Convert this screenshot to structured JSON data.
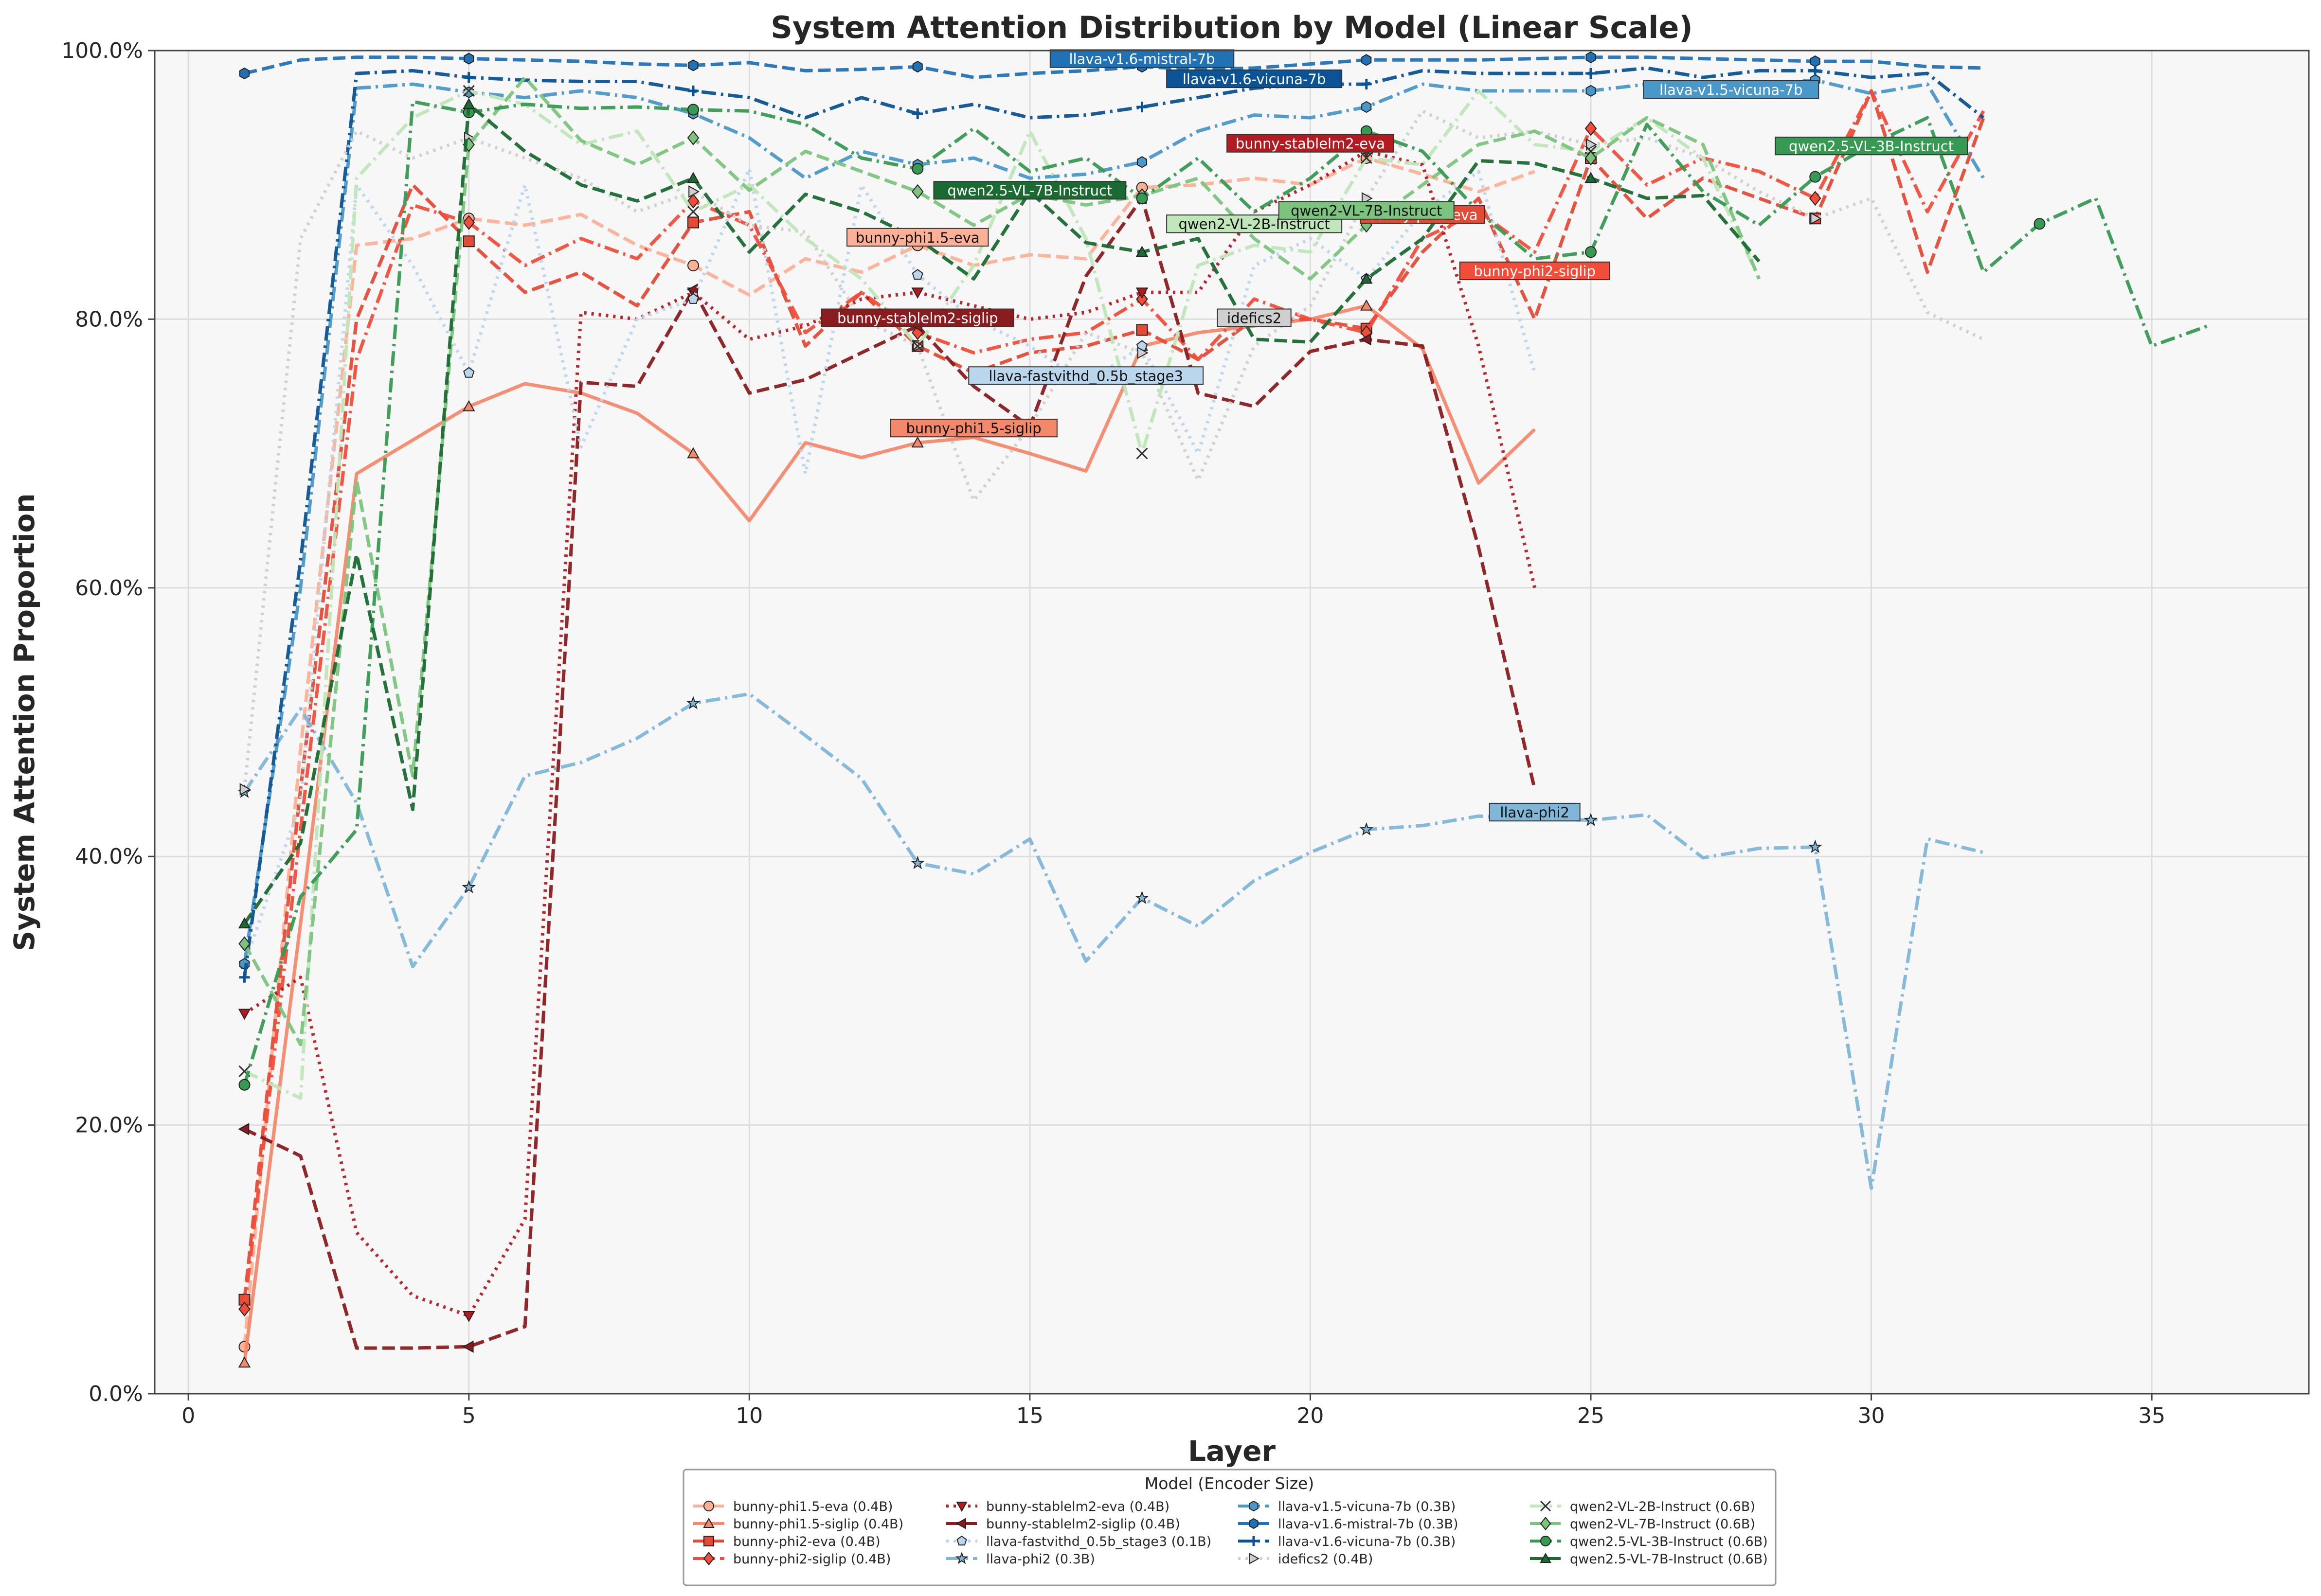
{
  "chart_data": {
    "type": "line",
    "title": "System Attention Distribution by Model (Linear Scale)",
    "xlabel": "Layer",
    "ylabel": "System Attention Proportion",
    "xlim": [
      -0.6,
      37.8
    ],
    "ylim": [
      0,
      1
    ],
    "xticks": [
      0,
      5,
      10,
      15,
      20,
      25,
      30,
      35
    ],
    "yticks": [
      0,
      0.2,
      0.4,
      0.6,
      0.8,
      1.0
    ],
    "ytick_labels": [
      "0.0%",
      "20.0%",
      "40.0%",
      "60.0%",
      "80.0%",
      "100.0%"
    ],
    "grid": true,
    "legend": {
      "title": "Model (Encoder Size)",
      "placement": "bottom-center",
      "columns": 4
    },
    "series": [
      {
        "name": "bunny-phi1.5-eva (0.4B)",
        "annotation": "bunny-phi1.5-eva",
        "color": "#fcb095",
        "dash": "dashed",
        "marker": "circle",
        "x": [
          1,
          2,
          3,
          4,
          5,
          6,
          7,
          8,
          9,
          10,
          11,
          12,
          13,
          14,
          15,
          16,
          17,
          18,
          19,
          20,
          21,
          22,
          23,
          24
        ],
        "y": [
          0.035,
          0.48,
          0.855,
          0.86,
          0.875,
          0.87,
          0.878,
          0.855,
          0.84,
          0.818,
          0.845,
          0.835,
          0.855,
          0.84,
          0.848,
          0.845,
          0.898,
          0.9,
          0.905,
          0.9,
          0.92,
          0.908,
          0.895,
          0.91
        ],
        "ann_x": 13,
        "ann_y": 0.86
      },
      {
        "name": "bunny-phi1.5-siglip (0.4B)",
        "annotation": "bunny-phi1.5-siglip",
        "color": "#f4886a",
        "dash": "solid",
        "marker": "triangle-up",
        "x": [
          1,
          2,
          3,
          4,
          5,
          6,
          7,
          8,
          9,
          10,
          11,
          12,
          13,
          14,
          15,
          16,
          17,
          18,
          19,
          20,
          21,
          22,
          23,
          24
        ],
        "y": [
          0.023,
          0.35,
          0.685,
          0.71,
          0.735,
          0.752,
          0.745,
          0.73,
          0.7,
          0.65,
          0.708,
          0.697,
          0.708,
          0.712,
          0.7,
          0.687,
          0.78,
          0.79,
          0.795,
          0.8,
          0.81,
          0.778,
          0.678,
          0.718
        ],
        "ann_x": 14,
        "ann_y": 0.718
      },
      {
        "name": "bunny-phi2-eva (0.4B)",
        "annotation": "bunny-phi2-eva",
        "color": "#e44b37",
        "dash": "dashed",
        "marker": "square",
        "x": [
          1,
          2,
          3,
          4,
          5,
          6,
          7,
          8,
          9,
          10,
          11,
          12,
          13,
          14,
          15,
          16,
          17,
          18,
          19,
          20,
          21,
          22,
          23,
          24,
          25,
          26,
          27,
          28,
          29,
          30,
          31,
          32
        ],
        "y": [
          0.07,
          0.45,
          0.8,
          0.9,
          0.858,
          0.82,
          0.835,
          0.81,
          0.872,
          0.88,
          0.78,
          0.82,
          0.78,
          0.76,
          0.775,
          0.78,
          0.792,
          0.77,
          0.8,
          0.8,
          0.793,
          0.85,
          0.89,
          0.8,
          0.92,
          0.875,
          0.905,
          0.89,
          0.875,
          0.97,
          0.835,
          0.95
        ],
        "ann_x": 22,
        "ann_y": 0.877
      },
      {
        "name": "bunny-phi2-siglip (0.4B)",
        "annotation": "bunny-phi2-siglip",
        "color": "#f34d3a",
        "dash": "dashdot",
        "marker": "diamond",
        "x": [
          1,
          2,
          3,
          4,
          5,
          6,
          7,
          8,
          9,
          10,
          11,
          12,
          13,
          14,
          15,
          16,
          17,
          18,
          19,
          20,
          21,
          22,
          23,
          24,
          25,
          26,
          27,
          28,
          29,
          30,
          31,
          32
        ],
        "y": [
          0.063,
          0.42,
          0.77,
          0.885,
          0.872,
          0.84,
          0.86,
          0.845,
          0.888,
          0.87,
          0.79,
          0.82,
          0.79,
          0.775,
          0.785,
          0.79,
          0.815,
          0.77,
          0.815,
          0.8,
          0.79,
          0.86,
          0.88,
          0.85,
          0.942,
          0.9,
          0.92,
          0.91,
          0.89,
          0.97,
          0.88,
          0.955
        ],
        "ann_x": 24,
        "ann_y": 0.835
      },
      {
        "name": "bunny-stablelm2-eva (0.4B)",
        "annotation": "bunny-stablelm2-eva",
        "color": "#b31b21",
        "dash": "dotted",
        "marker": "triangle-down",
        "x": [
          1,
          2,
          3,
          4,
          5,
          6,
          7,
          8,
          9,
          10,
          11,
          12,
          13,
          14,
          15,
          16,
          17,
          18,
          19,
          20,
          21,
          22,
          23,
          24
        ],
        "y": [
          0.283,
          0.31,
          0.12,
          0.073,
          0.058,
          0.13,
          0.805,
          0.8,
          0.82,
          0.785,
          0.795,
          0.815,
          0.82,
          0.81,
          0.8,
          0.805,
          0.82,
          0.82,
          0.88,
          0.9,
          0.925,
          0.915,
          0.78,
          0.6
        ],
        "ann_x": 20,
        "ann_y": 0.93
      },
      {
        "name": "bunny-stablelm2-siglip (0.4B)",
        "annotation": "bunny-stablelm2-siglip",
        "color": "#8a1b1e",
        "dash": "dashed",
        "marker": "triangle-left",
        "x": [
          1,
          2,
          3,
          4,
          5,
          6,
          7,
          8,
          9,
          10,
          11,
          12,
          13,
          14,
          15,
          16,
          17,
          18,
          19,
          20,
          21,
          22,
          23,
          24
        ],
        "y": [
          0.197,
          0.177,
          0.034,
          0.034,
          0.035,
          0.05,
          0.753,
          0.75,
          0.822,
          0.745,
          0.755,
          0.775,
          0.795,
          0.75,
          0.72,
          0.832,
          0.89,
          0.745,
          0.735,
          0.776,
          0.785,
          0.78,
          0.63,
          0.45
        ],
        "ann_x": 13,
        "ann_y": 0.8
      },
      {
        "name": "llava-fastvithd_0.5b_stage3 (0.1B)",
        "annotation": "llava-fastvithd_0.5b_stage3",
        "color": "#b9d6ec",
        "dash": "dotted",
        "marker": "pentagon",
        "x": [
          1,
          2,
          3,
          4,
          5,
          6,
          7,
          8,
          9,
          10,
          11,
          12,
          13,
          14,
          15,
          16,
          17,
          18,
          19,
          20,
          21,
          22,
          23,
          24
        ],
        "y": [
          0.32,
          0.44,
          0.9,
          0.84,
          0.76,
          0.9,
          0.705,
          0.8,
          0.815,
          0.912,
          0.685,
          0.9,
          0.833,
          0.8,
          0.78,
          0.752,
          0.78,
          0.7,
          0.84,
          0.86,
          0.83,
          0.88,
          0.91,
          0.76
        ],
        "ann_x": 16,
        "ann_y": 0.757
      },
      {
        "name": "llava-phi2 (0.3B)",
        "annotation": "llava-phi2",
        "color": "#80b6d8",
        "dash": "dashdot",
        "marker": "star",
        "x": [
          1,
          2,
          3,
          4,
          5,
          6,
          7,
          8,
          9,
          10,
          11,
          12,
          13,
          14,
          15,
          16,
          17,
          18,
          19,
          20,
          21,
          22,
          23,
          24,
          25,
          26,
          27,
          28,
          29,
          30,
          31,
          32
        ],
        "y": [
          0.448,
          0.51,
          0.44,
          0.318,
          0.377,
          0.46,
          0.47,
          0.488,
          0.514,
          0.521,
          0.49,
          0.458,
          0.395,
          0.387,
          0.413,
          0.322,
          0.369,
          0.348,
          0.382,
          0.403,
          0.42,
          0.423,
          0.43,
          0.428,
          0.427,
          0.431,
          0.399,
          0.406,
          0.407,
          0.153,
          0.413,
          0.403
        ],
        "ann_x": 24,
        "ann_y": 0.432
      },
      {
        "name": "llava-v1.5-vicuna-7b (0.3B)",
        "annotation": "llava-v1.5-vicuna-7b",
        "color": "#4a98c9",
        "dash": "dashdot",
        "marker": "hexagon",
        "x": [
          1,
          2,
          3,
          4,
          5,
          6,
          7,
          8,
          9,
          10,
          11,
          12,
          13,
          14,
          15,
          16,
          17,
          18,
          19,
          20,
          21,
          22,
          23,
          24,
          25,
          26,
          27,
          28,
          29,
          30,
          31,
          32
        ],
        "y": [
          0.32,
          0.6,
          0.972,
          0.975,
          0.969,
          0.965,
          0.97,
          0.965,
          0.953,
          0.935,
          0.905,
          0.925,
          0.915,
          0.92,
          0.905,
          0.908,
          0.917,
          0.94,
          0.952,
          0.95,
          0.958,
          0.975,
          0.97,
          0.97,
          0.97,
          0.975,
          0.975,
          0.975,
          0.978,
          0.968,
          0.975,
          0.905
        ],
        "ann_x": 27.5,
        "ann_y": 0.97
      },
      {
        "name": "llava-v1.6-mistral-7b (0.3B)",
        "annotation": "llava-v1.6-mistral-7b",
        "color": "#2171b5",
        "dash": "dashed",
        "marker": "hexagon",
        "x": [
          1,
          2,
          3,
          4,
          5,
          6,
          7,
          8,
          9,
          10,
          11,
          12,
          13,
          14,
          15,
          16,
          17,
          18,
          19,
          20,
          21,
          22,
          23,
          24,
          25,
          26,
          27,
          28,
          29,
          30,
          31,
          32
        ],
        "y": [
          0.983,
          0.993,
          0.995,
          0.995,
          0.994,
          0.993,
          0.992,
          0.99,
          0.989,
          0.991,
          0.985,
          0.986,
          0.988,
          0.98,
          0.983,
          0.985,
          0.988,
          0.986,
          0.987,
          0.99,
          0.993,
          0.993,
          0.993,
          0.994,
          0.995,
          0.995,
          0.994,
          0.993,
          0.992,
          0.992,
          0.988,
          0.987
        ],
        "ann_x": 17,
        "ann_y": 0.993
      },
      {
        "name": "llava-v1.6-vicuna-7b (0.3B)",
        "annotation": "llava-v1.6-vicuna-7b",
        "color": "#0b5394",
        "dash": "dashdot",
        "marker": "plus",
        "x": [
          1,
          2,
          3,
          4,
          5,
          6,
          7,
          8,
          9,
          10,
          11,
          12,
          13,
          14,
          15,
          16,
          17,
          18,
          19,
          20,
          21,
          22,
          23,
          24,
          25,
          26,
          27,
          28,
          29,
          30,
          31,
          32
        ],
        "y": [
          0.31,
          0.62,
          0.983,
          0.985,
          0.98,
          0.978,
          0.977,
          0.977,
          0.97,
          0.965,
          0.95,
          0.965,
          0.953,
          0.96,
          0.95,
          0.952,
          0.958,
          0.965,
          0.972,
          0.975,
          0.975,
          0.985,
          0.983,
          0.983,
          0.983,
          0.987,
          0.98,
          0.985,
          0.985,
          0.98,
          0.983,
          0.95
        ],
        "ann_x": 19,
        "ann_y": 0.978
      },
      {
        "name": "idefics2 (0.4B)",
        "annotation": "idefics2",
        "color": "#cfcfcf",
        "dash": "dotted",
        "marker": "triangle-right",
        "x": [
          1,
          2,
          3,
          4,
          5,
          6,
          7,
          8,
          9,
          10,
          11,
          12,
          13,
          14,
          15,
          16,
          17,
          18,
          19,
          20,
          21,
          22,
          23,
          24,
          25,
          26,
          27,
          28,
          29,
          30,
          31,
          32
        ],
        "y": [
          0.45,
          0.86,
          0.94,
          0.92,
          0.935,
          0.92,
          0.905,
          0.88,
          0.895,
          0.87,
          0.865,
          0.8,
          0.78,
          0.665,
          0.72,
          0.79,
          0.775,
          0.68,
          0.78,
          0.81,
          0.89,
          0.955,
          0.935,
          0.94,
          0.93,
          0.935,
          0.92,
          0.895,
          0.875,
          0.89,
          0.805,
          0.785
        ],
        "ann_x": 19,
        "ann_y": 0.8
      },
      {
        "name": "qwen2-VL-2B-Instruct (0.6B)",
        "annotation": "qwen2-VL-2B-Instruct",
        "color": "#c0e6b9",
        "dash": "dashdot",
        "marker": "x",
        "x": [
          1,
          2,
          3,
          4,
          5,
          6,
          7,
          8,
          9,
          10,
          11,
          12,
          13,
          14,
          15,
          16,
          17,
          18,
          19,
          20,
          21,
          22,
          23,
          24,
          25,
          26,
          27,
          28
        ],
        "y": [
          0.24,
          0.22,
          0.905,
          0.95,
          0.97,
          0.96,
          0.93,
          0.94,
          0.88,
          0.9,
          0.86,
          0.83,
          0.78,
          0.84,
          0.94,
          0.86,
          0.7,
          0.84,
          0.855,
          0.85,
          0.92,
          0.915,
          0.97,
          0.93,
          0.925,
          0.95,
          0.92,
          0.83
        ],
        "ann_x": 19,
        "ann_y": 0.87
      },
      {
        "name": "qwen2-VL-7B-Instruct (0.6B)",
        "annotation": "qwen2-VL-7B-Instruct",
        "color": "#7cc47e",
        "dash": "dashed",
        "marker": "diamond",
        "x": [
          1,
          2,
          3,
          4,
          5,
          6,
          7,
          8,
          9,
          10,
          11,
          12,
          13,
          14,
          15,
          16,
          17,
          18,
          19,
          20,
          21,
          22,
          23,
          24,
          25,
          26,
          27,
          28
        ],
        "y": [
          0.335,
          0.26,
          0.68,
          0.46,
          0.93,
          0.98,
          0.933,
          0.915,
          0.935,
          0.896,
          0.925,
          0.91,
          0.895,
          0.87,
          0.893,
          0.885,
          0.892,
          0.905,
          0.86,
          0.83,
          0.87,
          0.9,
          0.93,
          0.94,
          0.92,
          0.95,
          0.93,
          0.83
        ],
        "ann_x": 21,
        "ann_y": 0.88
      },
      {
        "name": "qwen2.5-VL-3B-Instruct (0.6B)",
        "annotation": "qwen2.5-VL-3B-Instruct",
        "color": "#379a52",
        "dash": "dashdot",
        "marker": "circle",
        "x": [
          1,
          2,
          3,
          4,
          5,
          6,
          7,
          8,
          9,
          10,
          11,
          12,
          13,
          14,
          15,
          16,
          17,
          18,
          19,
          20,
          21,
          22,
          23,
          24,
          25,
          26,
          27,
          28,
          29,
          30,
          31,
          32,
          33,
          34,
          35,
          36
        ],
        "y": [
          0.23,
          0.37,
          0.42,
          0.962,
          0.954,
          0.96,
          0.957,
          0.958,
          0.956,
          0.955,
          0.945,
          0.92,
          0.912,
          0.942,
          0.91,
          0.92,
          0.89,
          0.92,
          0.88,
          0.905,
          0.94,
          0.925,
          0.88,
          0.845,
          0.85,
          0.945,
          0.895,
          0.87,
          0.906,
          0.93,
          0.95,
          0.835,
          0.871,
          0.89,
          0.78,
          0.795
        ],
        "ann_x": 30,
        "ann_y": 0.928
      },
      {
        "name": "qwen2.5-VL-7B-Instruct (0.6B)",
        "annotation": "qwen2.5-VL-7B-Instruct",
        "color": "#1a6a31",
        "dash": "dashed",
        "marker": "triangle-up",
        "x": [
          1,
          2,
          3,
          4,
          5,
          6,
          7,
          8,
          9,
          10,
          11,
          12,
          13,
          14,
          15,
          16,
          17,
          18,
          19,
          20,
          21,
          22,
          23,
          24,
          25,
          26,
          27,
          28
        ],
        "y": [
          0.35,
          0.41,
          0.625,
          0.435,
          0.96,
          0.925,
          0.9,
          0.888,
          0.905,
          0.85,
          0.893,
          0.88,
          0.86,
          0.83,
          0.895,
          0.857,
          0.85,
          0.86,
          0.785,
          0.783,
          0.83,
          0.86,
          0.918,
          0.916,
          0.905,
          0.89,
          0.892,
          0.843
        ],
        "ann_x": 15,
        "ann_y": 0.895
      }
    ]
  }
}
